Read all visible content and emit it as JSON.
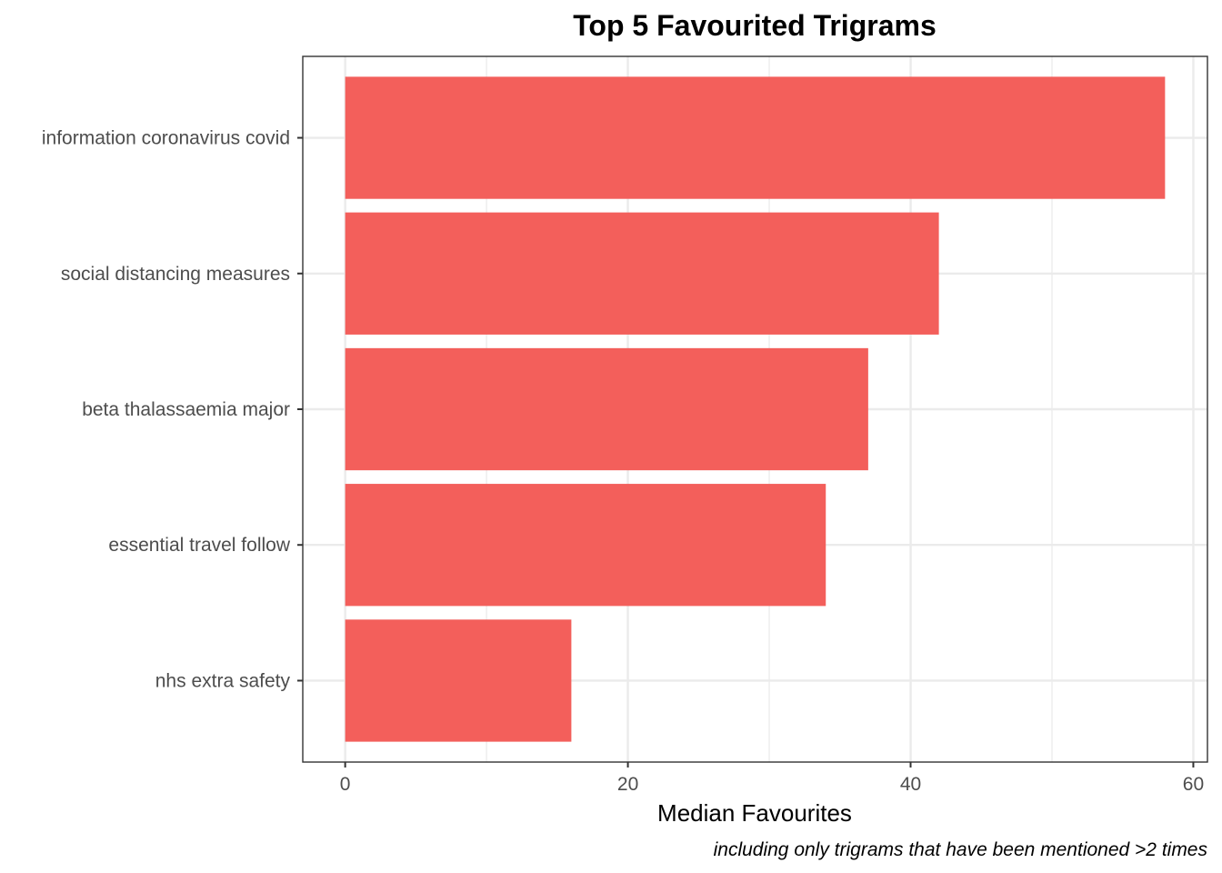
{
  "chart_data": {
    "type": "bar",
    "orientation": "horizontal",
    "title": "Top 5 Favourited Trigrams",
    "xlabel": "Median Favourites",
    "ylabel": "",
    "caption": "including only trigrams that have been mentioned >2 times",
    "categories": [
      "information coronavirus covid",
      "social distancing measures",
      "beta thalassaemia major",
      "essential travel follow",
      "nhs extra safety"
    ],
    "values": [
      58,
      42,
      37,
      34,
      16
    ],
    "xlim": [
      -3,
      61
    ],
    "xticks": [
      0,
      20,
      40,
      60
    ],
    "grid": true,
    "bar_color": "#f35f5b",
    "grid_color": "#ebebeb",
    "panel_border_color": "#333333"
  }
}
